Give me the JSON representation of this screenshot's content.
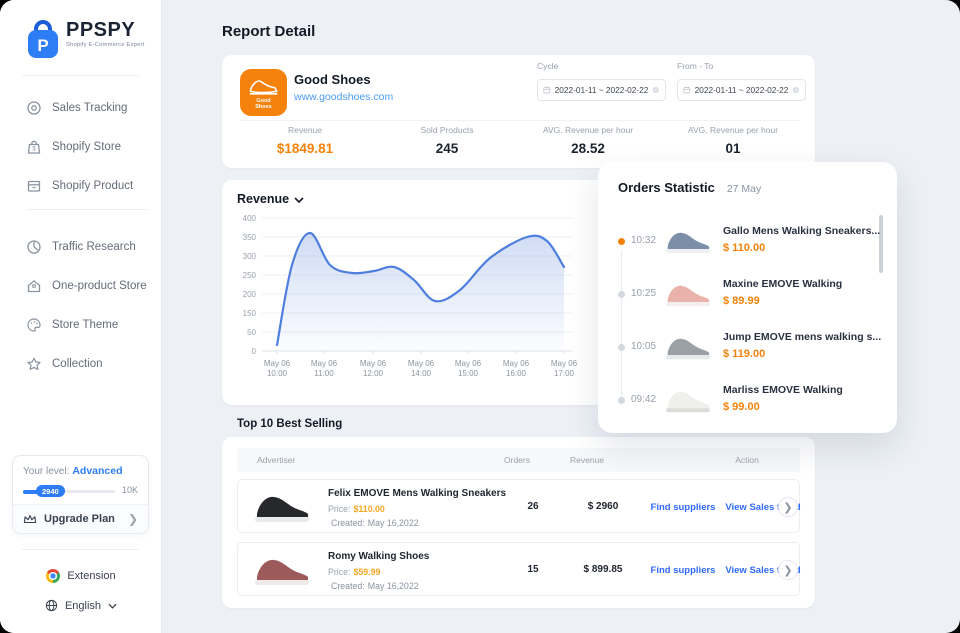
{
  "colors": {
    "accent_orange": "#f5820c",
    "accent_blue": "#2e7cf6",
    "link_blue": "#2f6bff",
    "chart_line": "#4d7ee0",
    "bg": "#edf1f5"
  },
  "sidebar": {
    "logo": {
      "brand": "PPSPY",
      "subtitle": "Shopify E-Commerce Expert"
    },
    "items": [
      {
        "label": "Sales Tracking",
        "icon": "target-icon"
      },
      {
        "label": "Shopify Store",
        "icon": "store-bag-icon"
      },
      {
        "label": "Shopify Product",
        "icon": "product-box-icon"
      },
      {
        "label": "Traffic Research",
        "icon": "pie-clock-icon"
      },
      {
        "label": "One-product Store",
        "icon": "home-icon"
      },
      {
        "label": "Store Theme",
        "icon": "palette-icon"
      },
      {
        "label": "Collection",
        "icon": "star-icon"
      }
    ],
    "level": {
      "label": "Your level:",
      "value": "Advanced",
      "progress_current": "2940",
      "progress_max": "10K",
      "upgrade_label": "Upgrade Plan"
    },
    "extension_label": "Extension",
    "language_label": "English"
  },
  "header": {
    "title": "Report Detail"
  },
  "store_card": {
    "badge_line1": "Good",
    "badge_line2": "Shoes",
    "name": "Good Shoes",
    "url": "www.goodshoes.com",
    "cycle_label": "Cycle",
    "cycle_value": "2022-01-11  ~  2022-02-22",
    "fromto_label": "From - To",
    "fromto_value": "2022-01-11  ~  2022-02-22",
    "stats": [
      {
        "label": "Revenue",
        "value": "$1849.81"
      },
      {
        "label": "Sold Products",
        "value": "245"
      },
      {
        "label": "AVG. Revenue per hour",
        "value": "28.52"
      },
      {
        "label": "AVG. Revenue per hour",
        "value": "01"
      }
    ]
  },
  "chart_data": {
    "type": "area",
    "title": "Revenue",
    "x_labels": [
      [
        "May 06",
        "10:00"
      ],
      [
        "May 06",
        "11:00"
      ],
      [
        "May 06",
        "12:00"
      ],
      [
        "May 06",
        "14:00"
      ],
      [
        "May 06",
        "15:00"
      ],
      [
        "May 06",
        "16:00"
      ],
      [
        "May 06",
        "17:00"
      ]
    ],
    "y_ticks": [
      "400",
      "350",
      "300",
      "250",
      "200",
      "150",
      "50",
      "0"
    ],
    "ylim": [
      0,
      400
    ],
    "series": [
      {
        "name": "Revenue",
        "values_at_labels": [
          25,
          265,
          245,
          180,
          205,
          330,
          250
        ],
        "peaks": [
          {
            "near": "10:45",
            "value": 360
          },
          {
            "near": "16:15",
            "value": 340
          }
        ],
        "trough": {
          "near": "14:30",
          "value": 150
        }
      }
    ],
    "legend": "none",
    "grid": "horizontal",
    "line_color": "#4d7ee0",
    "render_points": [
      [
        45,
        135
      ],
      [
        60,
        55
      ],
      [
        78,
        23
      ],
      [
        98,
        55
      ],
      [
        120,
        63
      ],
      [
        142,
        61
      ],
      [
        162,
        57
      ],
      [
        182,
        70
      ],
      [
        203,
        91
      ],
      [
        228,
        80
      ],
      [
        258,
        48
      ],
      [
        295,
        27
      ],
      [
        315,
        31
      ],
      [
        332,
        57
      ]
    ]
  },
  "orders": {
    "title": "Orders Statistic",
    "date": "27 May",
    "items": [
      {
        "time": "10:32",
        "name": "Gallo Mens Walking Sneakers...",
        "price": "$ 110.00",
        "body": "#7d8fa8",
        "sole": "#eef0f2"
      },
      {
        "time": "10:25",
        "name": "Maxine EMOVE Walking",
        "price": "$ 89.99",
        "body": "#e9b3ac",
        "sole": "#f4efed"
      },
      {
        "time": "10:05",
        "name": "Jump EMOVE mens walking s...",
        "price": "$ 119.00",
        "body": "#9aa0a6",
        "sole": "#e8e9eb"
      },
      {
        "time": "09:42",
        "name": "Marliss EMOVE Walking",
        "price": "$ 99.00",
        "body": "#efefec",
        "sole": "#dcdcd8"
      }
    ]
  },
  "best_selling": {
    "title": "Top 10 Best Selling",
    "columns": {
      "c1": "Advertiser",
      "c2": "Orders",
      "c3": "Revenue",
      "c4": "Action"
    },
    "rows": [
      {
        "name": "Felix EMOVE Mens Walking Sneakers",
        "price_label": "Price:",
        "price": "$110.00",
        "created_label": "Created:",
        "created": "May 16,2022",
        "orders": "26",
        "revenue": "$ 2960",
        "find": "Find suppliers",
        "view": "View Sales trend",
        "body": "#26282c",
        "sole": "#e9eaec"
      },
      {
        "name": "Romy Walking Shoes",
        "price_label": "Price:",
        "price": "$59.99",
        "created_label": "Created:",
        "created": "May 16,2022",
        "orders": "15",
        "revenue": "$ 899.85",
        "find": "Find suppliers",
        "view": "View Sales trend",
        "body": "#9c5a5a",
        "sole": "#efe9e9"
      }
    ]
  }
}
